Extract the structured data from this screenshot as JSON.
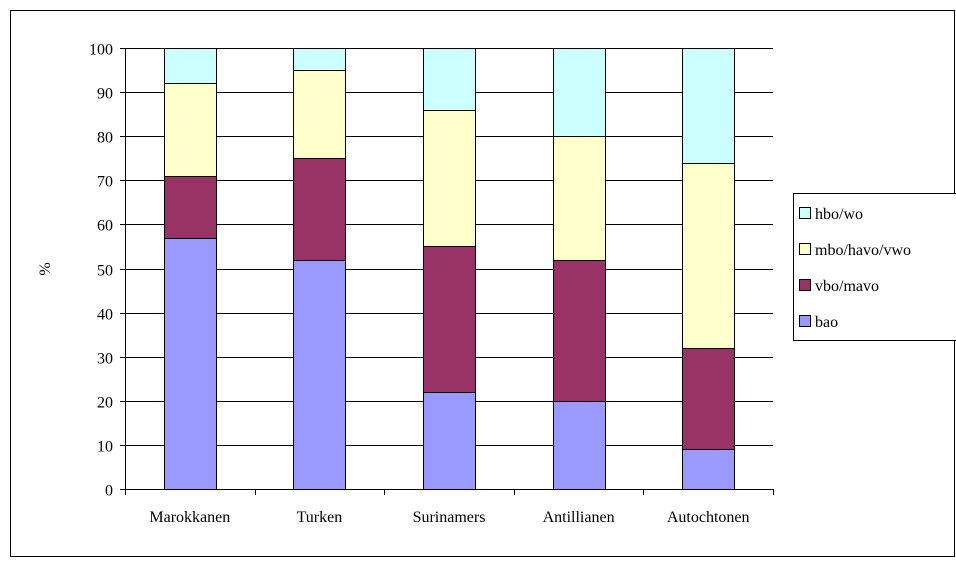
{
  "chart_data": {
    "type": "bar",
    "stacked": true,
    "categories": [
      "Marokkanen",
      "Turken",
      "Surinamers",
      "Antillianen",
      "Autochtonen"
    ],
    "series": [
      {
        "name": "bao",
        "values": [
          57,
          52,
          22,
          20,
          9
        ],
        "color": "#9999ff"
      },
      {
        "name": "vbo/mavo",
        "values": [
          14,
          23,
          33,
          32,
          23
        ],
        "color": "#993366"
      },
      {
        "name": "mbo/havo/vwo",
        "values": [
          21,
          20,
          31,
          28,
          42
        ],
        "color": "#ffffcc"
      },
      {
        "name": "hbo/wo",
        "values": [
          8,
          5,
          14,
          20,
          26
        ],
        "color": "#ccffff"
      }
    ],
    "title": "",
    "xlabel": "",
    "ylabel": "%",
    "ylim": [
      0,
      100
    ],
    "yticks": [
      "0",
      "10",
      "20",
      "30",
      "40",
      "50",
      "60",
      "70",
      "80",
      "90",
      "100"
    ],
    "grid": true,
    "legend_position": "right",
    "legend_order": [
      "hbo/wo",
      "mbo/havo/vwo",
      "vbo/mavo",
      "bao"
    ]
  }
}
